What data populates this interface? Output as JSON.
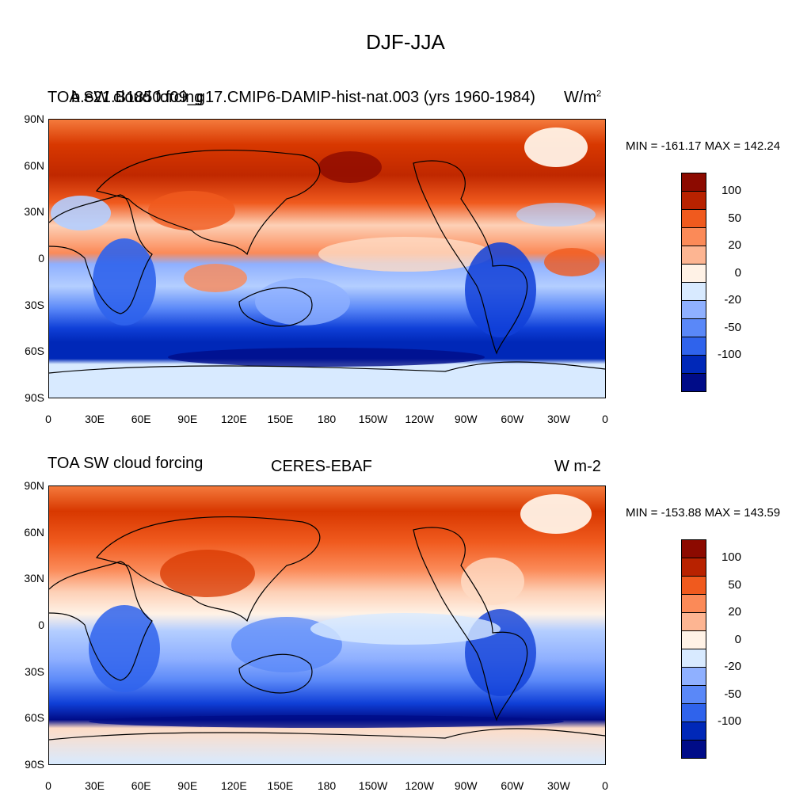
{
  "title": "DJF-JJA",
  "panels": [
    {
      "left_text": "TOA SW cloud forcing",
      "center_text": "b.e21.B1850.f09_g17.CMIP6-DAMIP-hist-nat.003 (yrs 1960-1984)",
      "units": "W/m",
      "units_sup": "2",
      "minmax": "MIN = -161.17 MAX = 142.24"
    },
    {
      "left_text": "TOA SW cloud forcing",
      "center_text": "CERES-EBAF",
      "units": "W m-2",
      "units_sup": "",
      "minmax": "MIN = -153.88 MAX = 143.59"
    }
  ],
  "lat_labels": [
    "90N",
    "60N",
    "30N",
    "0",
    "30S",
    "60S",
    "90S"
  ],
  "lon_labels": [
    "0",
    "30E",
    "60E",
    "90E",
    "120E",
    "150E",
    "180",
    "150W",
    "120W",
    "90W",
    "60W",
    "30W",
    "0"
  ],
  "colorbar": {
    "labels": [
      "100",
      "50",
      "20",
      "0",
      "-20",
      "-50",
      "-100"
    ],
    "colors": [
      "#8c0a00",
      "#b82200",
      "#d83800",
      "#f05a1e",
      "#fb8a58",
      "#fdb592",
      "#fedcc6",
      "#fff2e6",
      "#d8eaff",
      "#b4ceff",
      "#8fb0ff",
      "#5a88f8",
      "#2f63ec",
      "#1040d8",
      "#0028b8",
      "#000c88"
    ]
  }
}
